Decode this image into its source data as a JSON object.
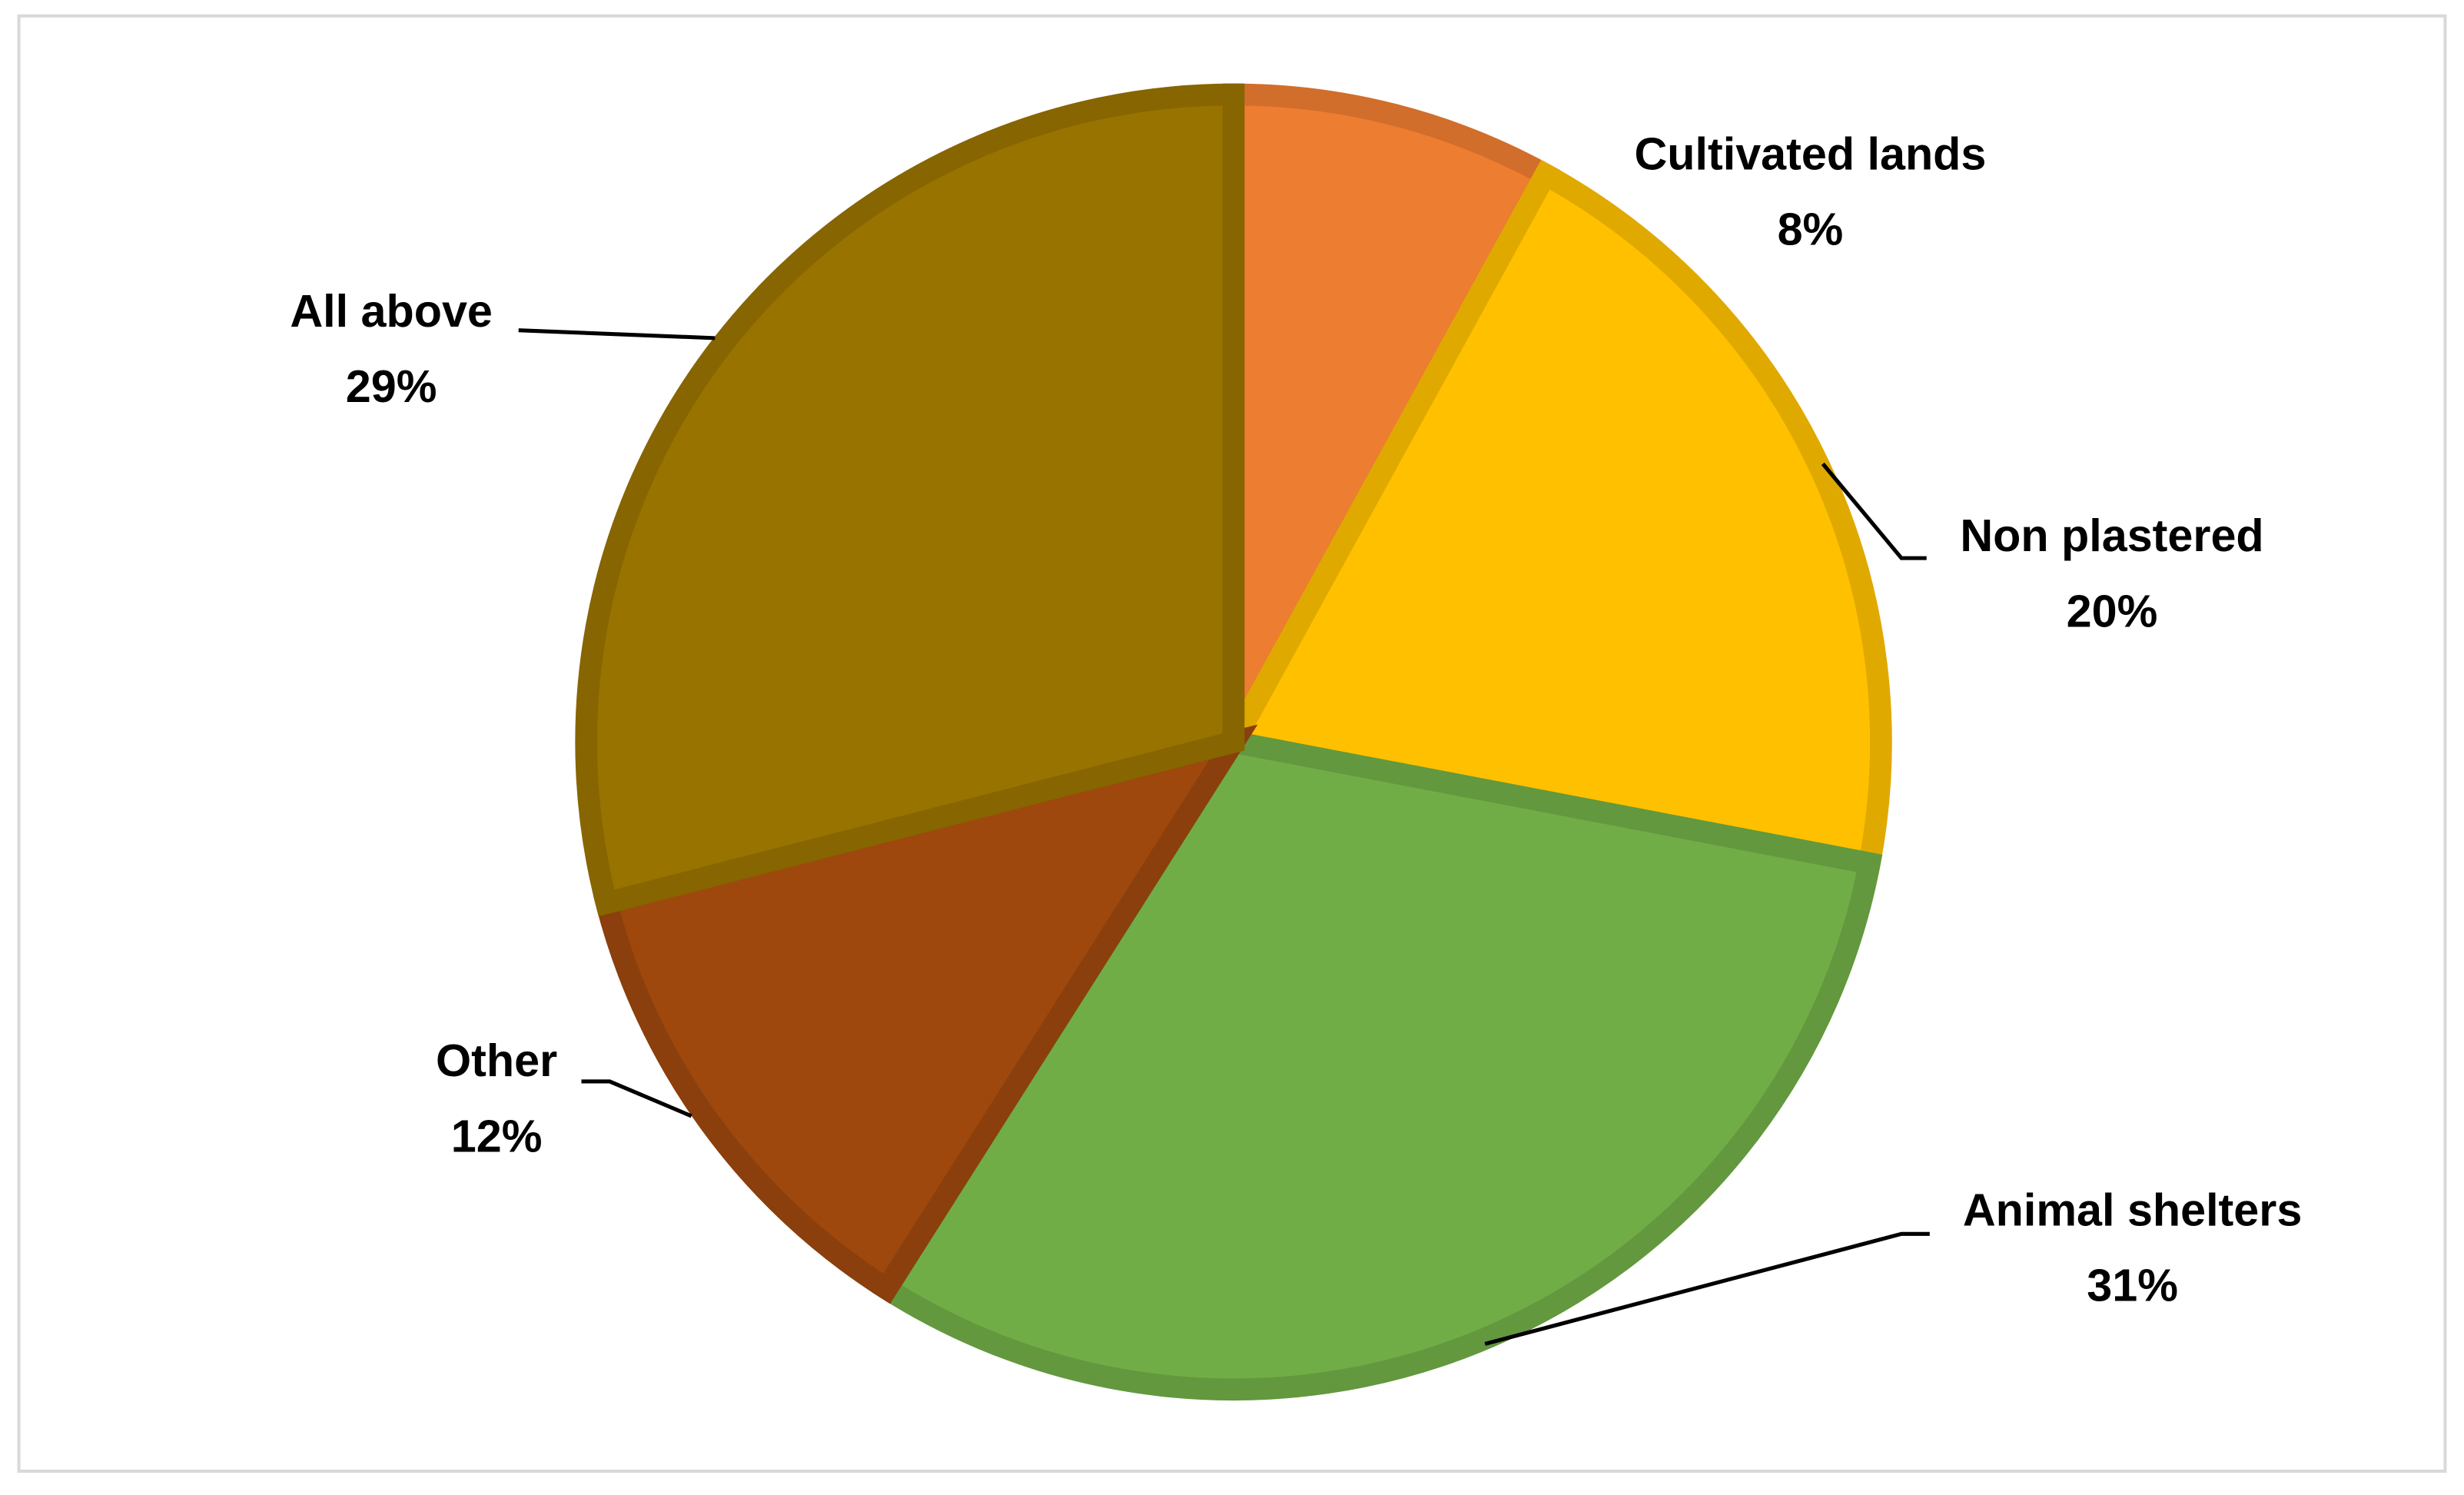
{
  "chart_data": {
    "type": "pie",
    "categories": [
      "Cultivated lands",
      "Non plastered",
      "Animal shelters",
      "Other",
      "All above"
    ],
    "values": [
      8,
      20,
      31,
      12,
      29
    ],
    "value_labels": [
      "8%",
      "20%",
      "31%",
      "12%",
      "29%"
    ],
    "colors": [
      "#ED7D31",
      "#FFC000",
      "#70AD47",
      "#9E480E",
      "#997300"
    ]
  }
}
